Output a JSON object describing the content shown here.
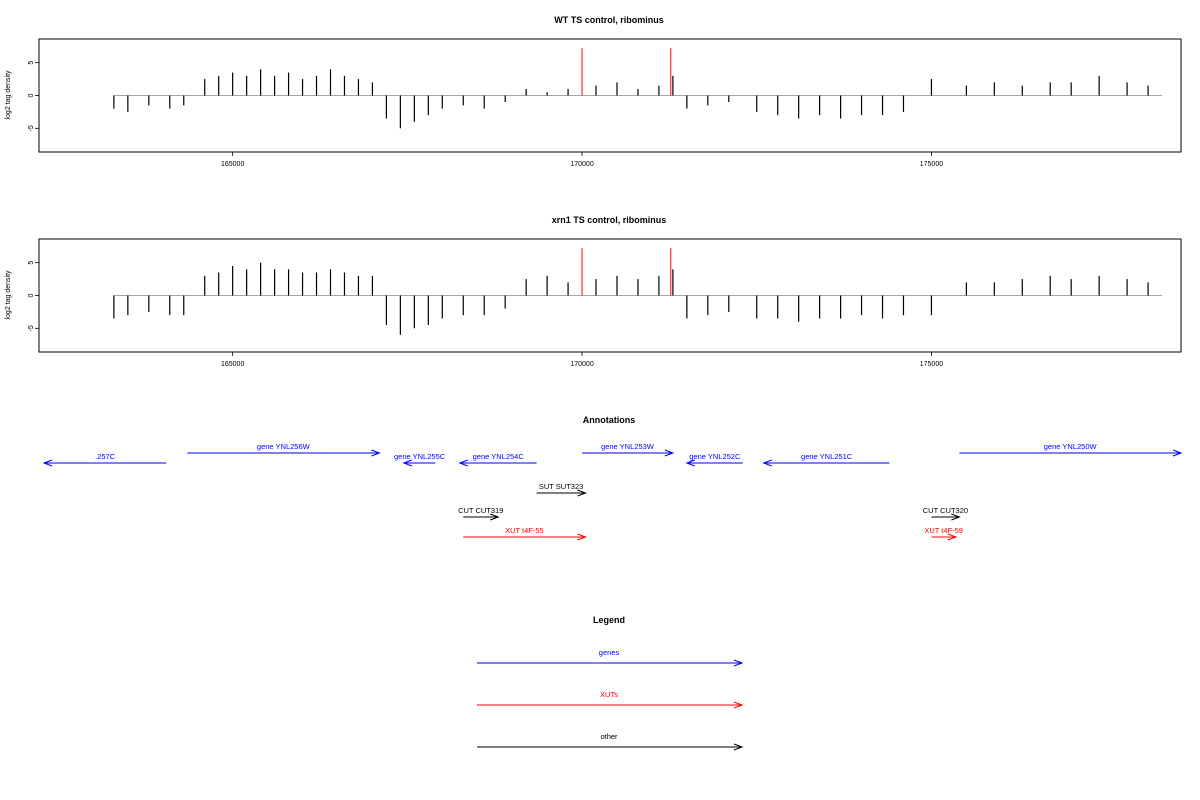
{
  "chart_data": [
    {
      "type": "bar",
      "title": "WT TS control, ribominus",
      "xlabel": "",
      "ylabel": "log2 tag density",
      "xlim": [
        162300,
        178500
      ],
      "ylim": [
        -8,
        8
      ],
      "xticks": [
        165000,
        170000,
        175000
      ],
      "xtick_labels": [
        "165000",
        "170000",
        "175000"
      ],
      "yticks": [
        -5,
        0,
        5
      ],
      "ytick_labels": [
        "-5",
        "0",
        "5"
      ],
      "series": [
        {
          "color": "#000000",
          "x": [
            163300,
            163500,
            163800,
            164100,
            164300,
            164600,
            164800,
            165000,
            165200,
            165400,
            165600,
            165800,
            166000,
            166200,
            166400,
            166600,
            166800,
            167000,
            167200,
            167400,
            167600,
            167800,
            168000,
            168300,
            168600,
            168900,
            169200,
            169500,
            169800,
            170200,
            170500,
            170800,
            171100,
            171300,
            171500,
            171800,
            172100,
            172500,
            172800,
            173100,
            173400,
            173700,
            174000,
            174300,
            174600,
            175000,
            175500,
            175900,
            176300,
            176700,
            177000,
            177400,
            177800,
            178100
          ],
          "values": [
            -2,
            -2.5,
            -1.5,
            -2,
            -1.5,
            2.5,
            3,
            3.5,
            3,
            4,
            3,
            3.5,
            2.5,
            3,
            4,
            3,
            2.5,
            2,
            -3.5,
            -5,
            -4,
            -3,
            -2,
            -1.5,
            -2,
            -1,
            1,
            0.5,
            1,
            1.5,
            2,
            1,
            1.5,
            3,
            -2,
            -1.5,
            -1,
            -2.5,
            -3,
            -3.5,
            -3,
            -3.5,
            -3,
            -3,
            -2.5,
            2.5,
            1.5,
            2,
            1.5,
            2,
            2,
            3,
            2,
            1.5
          ]
        },
        {
          "color": "#ff0000",
          "x": [
            170000,
            171270
          ],
          "values": [
            7.2,
            7.2
          ]
        }
      ]
    },
    {
      "type": "bar",
      "title": "xrn1 TS control, ribominus",
      "xlabel": "",
      "ylabel": "log2 tag density",
      "xlim": [
        162300,
        178500
      ],
      "ylim": [
        -8,
        8
      ],
      "xticks": [
        165000,
        170000,
        175000
      ],
      "xtick_labels": [
        "165000",
        "170000",
        "175000"
      ],
      "yticks": [
        -5,
        0,
        5
      ],
      "ytick_labels": [
        "-5",
        "0",
        "5"
      ],
      "series": [
        {
          "color": "#000000",
          "x": [
            163300,
            163500,
            163800,
            164100,
            164300,
            164600,
            164800,
            165000,
            165200,
            165400,
            165600,
            165800,
            166000,
            166200,
            166400,
            166600,
            166800,
            167000,
            167200,
            167400,
            167600,
            167800,
            168000,
            168300,
            168600,
            168900,
            169200,
            169500,
            169800,
            170200,
            170500,
            170800,
            171100,
            171300,
            171500,
            171800,
            172100,
            172500,
            172800,
            173100,
            173400,
            173700,
            174000,
            174300,
            174600,
            175000,
            175500,
            175900,
            176300,
            176700,
            177000,
            177400,
            177800,
            178100
          ],
          "values": [
            -3.5,
            -3,
            -2.5,
            -3,
            -3,
            3,
            3.5,
            4.5,
            4,
            5,
            4,
            4,
            3.5,
            3.5,
            4,
            3.5,
            3,
            3,
            -4.5,
            -6,
            -5,
            -4.5,
            -3.5,
            -3,
            -3,
            -2,
            2.5,
            3,
            2,
            2.5,
            3,
            2.5,
            3,
            4,
            -3.5,
            -3,
            -2.5,
            -3.5,
            -3.5,
            -4,
            -3.5,
            -3.5,
            -3,
            -3.5,
            -3,
            -3,
            2,
            2,
            2.5,
            3,
            2.5,
            3,
            2.5,
            2
          ]
        },
        {
          "color": "#ff0000",
          "x": [
            170000,
            171270
          ],
          "values": [
            7.2,
            7.2
          ]
        }
      ]
    }
  ],
  "annotations": {
    "title": "Annotations",
    "features": [
      {
        "label": ".257C",
        "color": "#0000ff",
        "x1": 162300,
        "x2": 164050,
        "strand": "-",
        "row": 1
      },
      {
        "label": "gene YNL256W",
        "color": "#0000ff",
        "x1": 164350,
        "x2": 167100,
        "strand": "+",
        "row": 0
      },
      {
        "label": "gene YNL255C",
        "color": "#0000ff",
        "x1": 167450,
        "x2": 167900,
        "strand": "-",
        "row": 1
      },
      {
        "label": "gene YNL254C",
        "color": "#0000ff",
        "x1": 168250,
        "x2": 169350,
        "strand": "-",
        "row": 1
      },
      {
        "label": "gene YNL253W",
        "color": "#0000ff",
        "x1": 170000,
        "x2": 171300,
        "strand": "+",
        "row": 0
      },
      {
        "label": "gene YNL252C",
        "color": "#0000ff",
        "x1": 171500,
        "x2": 172300,
        "strand": "-",
        "row": 1
      },
      {
        "label": "gene YNL251C",
        "color": "#0000ff",
        "x1": 172600,
        "x2": 174400,
        "strand": "-",
        "row": 1
      },
      {
        "label": "gene YNL250W",
        "color": "#0000ff",
        "x1": 175400,
        "x2": 178600,
        "strand": "+",
        "row": 0
      },
      {
        "label": "SUT SUT323",
        "color": "#000000",
        "x1": 169350,
        "x2": 170050,
        "strand": "+",
        "row": 2
      },
      {
        "label": "CUT CUT319",
        "color": "#000000",
        "x1": 168300,
        "x2": 168800,
        "strand": "+",
        "row": 3
      },
      {
        "label": "CUT CUT320",
        "color": "#000000",
        "x1": 175000,
        "x2": 175400,
        "strand": "+",
        "row": 3
      },
      {
        "label": "XUT t4F-55",
        "color": "#ff0000",
        "x1": 168300,
        "x2": 170050,
        "strand": "+",
        "row": 4
      },
      {
        "label": "XUT t4F-59",
        "color": "#ff0000",
        "x1": 175000,
        "x2": 175350,
        "strand": "+",
        "row": 4
      }
    ]
  },
  "legend": {
    "title": "Legend",
    "items": [
      {
        "label": "genes",
        "color": "#0000ff"
      },
      {
        "label": "XUTs",
        "color": "#ff0000"
      },
      {
        "label": "other",
        "color": "#000000"
      }
    ]
  }
}
